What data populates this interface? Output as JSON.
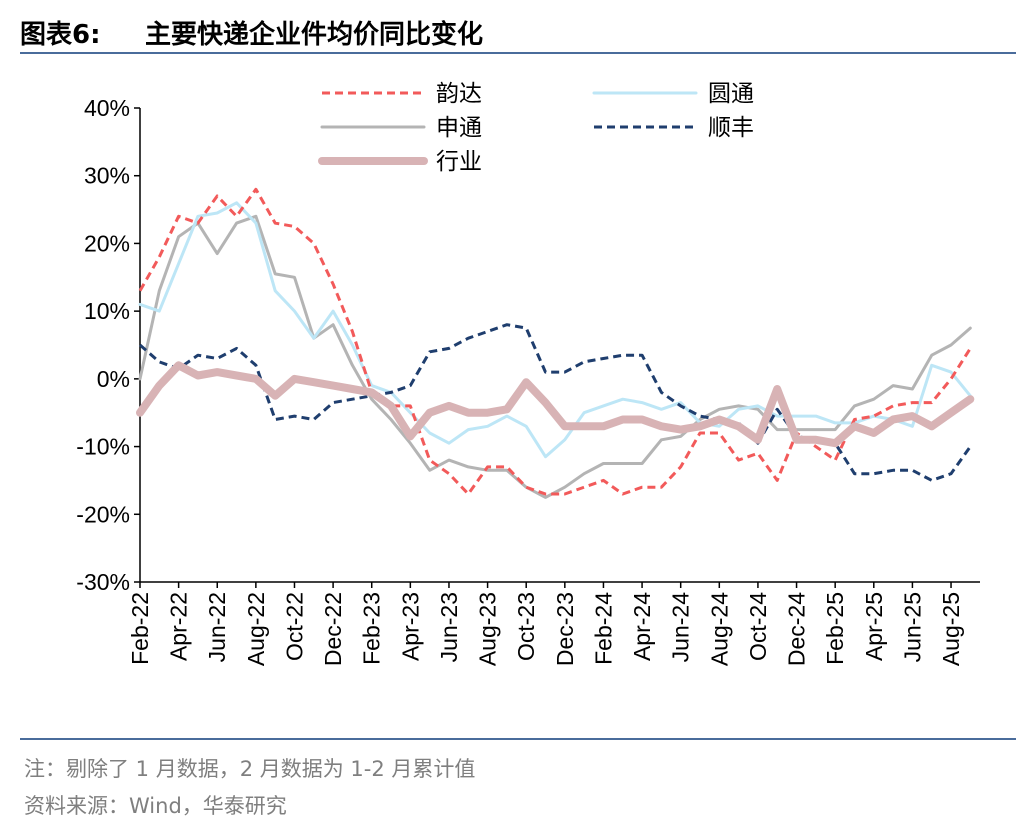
{
  "header": {
    "label": "图表6:",
    "title": "主要快递企业件均价同比变化"
  },
  "notes": {
    "note": "注：剔除了 1 月数据，2 月数据为 1-2 月累计值",
    "source": "资料来源：Wind，华泰研究"
  },
  "chart_data": {
    "type": "line",
    "title": "主要快递企业件均价同比变化",
    "ylim": [
      -30,
      40
    ],
    "yticks": [
      "40%",
      "30%",
      "20%",
      "10%",
      "0%",
      "-10%",
      "-20%",
      "-30%"
    ],
    "xtick_labels": [
      "Feb-22",
      "Apr-22",
      "Jun-22",
      "Aug-22",
      "Oct-22",
      "Dec-22",
      "Feb-23",
      "Apr-23",
      "Jun-23",
      "Aug-23",
      "Oct-23",
      "Dec-23",
      "Feb-24",
      "Apr-24",
      "Jun-24",
      "Aug-24",
      "Oct-24",
      "Dec-24",
      "Feb-25",
      "Apr-25",
      "Jun-25",
      "Aug-25"
    ],
    "x": [
      "Feb-22",
      "Mar-22",
      "Apr-22",
      "May-22",
      "Jun-22",
      "Jul-22",
      "Aug-22",
      "Sep-22",
      "Oct-22",
      "Nov-22",
      "Dec-22",
      "Jan-23",
      "Feb-23",
      "Mar-23",
      "Apr-23",
      "May-23",
      "Jun-23",
      "Jul-23",
      "Aug-23",
      "Sep-23",
      "Oct-23",
      "Nov-23",
      "Dec-23",
      "Jan-24",
      "Feb-24",
      "Mar-24",
      "Apr-24",
      "May-24",
      "Jun-24",
      "Jul-24",
      "Aug-24",
      "Sep-24",
      "Oct-24",
      "Nov-24",
      "Dec-24",
      "Jan-25",
      "Feb-25",
      "Mar-25",
      "Apr-25",
      "May-25",
      "Jun-25",
      "Jul-25",
      "Aug-25",
      "Sep-25"
    ],
    "series": [
      {
        "name": "韵达",
        "color": "#f25a5a",
        "style": "dashed",
        "values": [
          13,
          18,
          24,
          23,
          27,
          24,
          28,
          23,
          22.5,
          20,
          14,
          7,
          -2,
          -4,
          -4,
          -12,
          -14,
          -17,
          -13,
          -13,
          -16,
          -17,
          -17,
          -16,
          -15,
          -17,
          -16,
          -16,
          -13,
          -8,
          -8,
          -12,
          -11,
          -15,
          -8,
          -10,
          -12,
          -6,
          -5.5,
          -4,
          -3.5,
          -3.5,
          0,
          4.5
        ]
      },
      {
        "name": "圆通",
        "color": "#bde6f6",
        "style": "solid",
        "values": [
          11,
          10,
          17,
          24,
          24.5,
          26,
          23,
          13,
          10,
          6,
          10,
          5,
          -1,
          -2,
          -5,
          -8,
          -9.5,
          -7.5,
          -7,
          -5.5,
          -7,
          -11.5,
          -9,
          -5,
          -4,
          -3,
          -3.5,
          -4.5,
          -3.5,
          -6.5,
          -7,
          -4.5,
          -4,
          -5.5,
          -5.5,
          -5.5,
          -6.5,
          -6.5,
          -5.5,
          -6,
          -7,
          2,
          1,
          -2.5
        ]
      },
      {
        "name": "申通",
        "color": "#b4b4b4",
        "style": "solid",
        "values": [
          0,
          13,
          21,
          23,
          18.5,
          23,
          24,
          15.5,
          15,
          6,
          8,
          2,
          -3,
          -6,
          -9.5,
          -13.5,
          -12,
          -13,
          -13.5,
          -13.5,
          -16,
          -17.5,
          -16,
          -14,
          -12.5,
          -12.5,
          -12.5,
          -9,
          -8.5,
          -6,
          -4.5,
          -4,
          -4.5,
          -7.5,
          -7.5,
          -7.5,
          -7.5,
          -4,
          -3,
          -1,
          -1.5,
          3.5,
          5,
          7.5
        ]
      },
      {
        "name": "顺丰",
        "color": "#1f3e6e",
        "style": "dashed",
        "values": [
          5,
          2.5,
          1.5,
          3.5,
          3,
          4.5,
          2,
          -6,
          -5.5,
          -6,
          -3.5,
          -3,
          -2.5,
          -2,
          -1,
          4,
          4.5,
          6,
          7,
          8,
          7.5,
          1,
          1,
          2.5,
          3,
          3.5,
          3.5,
          -2,
          -4,
          -5.5,
          -6,
          -6.5,
          -9.5,
          -4.5,
          -8.5,
          -9,
          -9.5,
          -14,
          -14,
          -13.5,
          -13.5,
          -15,
          -14,
          -10
        ]
      },
      {
        "name": "行业",
        "color": "#d8b3b5",
        "style": "thick",
        "values": [
          -5,
          -1,
          2,
          0.5,
          1,
          0.5,
          0,
          -2.5,
          0,
          -0.5,
          -1,
          -1.5,
          -2,
          -4,
          -8.5,
          -5,
          -4,
          -5,
          -5,
          -4.5,
          -0.5,
          -3.5,
          -7,
          -7,
          -7,
          -6,
          -6,
          -7,
          -7.5,
          -7,
          -6,
          -7,
          -9,
          -1.5,
          -9,
          -9,
          -9.5,
          -7,
          -8,
          -6,
          -5.5,
          -7,
          -5,
          -3
        ]
      }
    ]
  }
}
